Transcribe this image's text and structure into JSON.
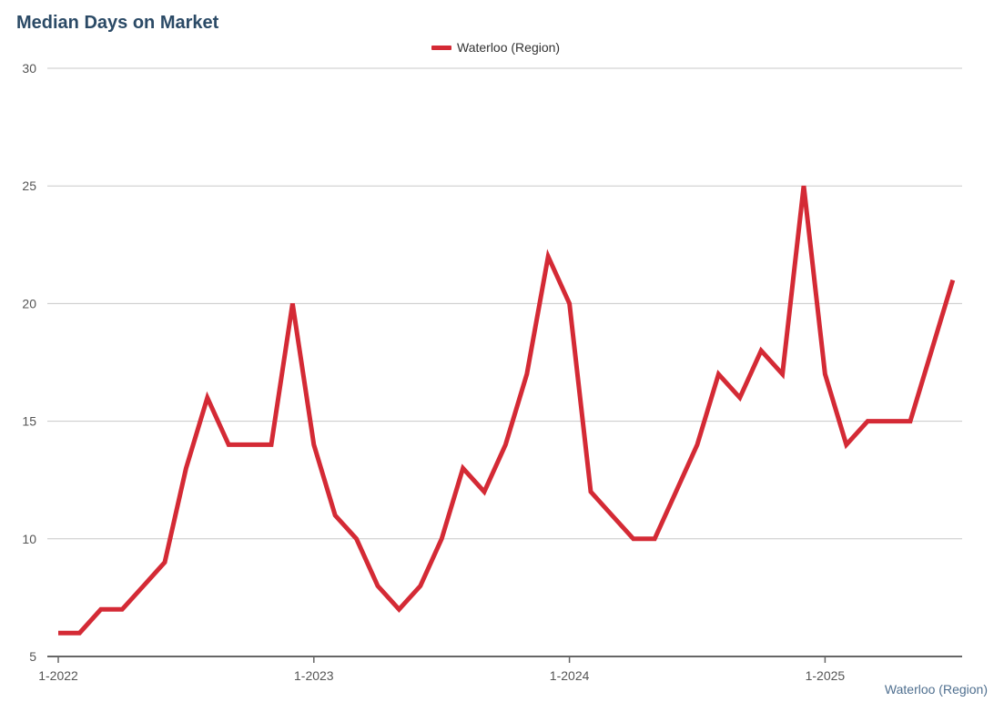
{
  "title": "Median Days on Market",
  "legend": {
    "label": "Waterloo (Region)"
  },
  "source_note": "Waterloo (Region)",
  "colors": {
    "series": "#d42a35",
    "grid": "#c8c8c8",
    "axis": "#666666",
    "title": "#2b4a66"
  },
  "chart_data": {
    "type": "line",
    "title": "Median Days on Market",
    "xlabel": "",
    "ylabel": "",
    "ylim": [
      5,
      30
    ],
    "yticks": [
      5,
      10,
      15,
      20,
      25,
      30
    ],
    "xticks": [
      "1-2022",
      "1-2023",
      "1-2024",
      "1-2025"
    ],
    "grid": true,
    "legend_position": "top-center",
    "x": [
      "1-2022",
      "2-2022",
      "3-2022",
      "4-2022",
      "5-2022",
      "6-2022",
      "7-2022",
      "8-2022",
      "9-2022",
      "10-2022",
      "11-2022",
      "12-2022",
      "1-2023",
      "2-2023",
      "3-2023",
      "4-2023",
      "5-2023",
      "6-2023",
      "7-2023",
      "8-2023",
      "9-2023",
      "10-2023",
      "11-2023",
      "12-2023",
      "1-2024",
      "2-2024",
      "3-2024",
      "4-2024",
      "5-2024",
      "6-2024",
      "7-2024",
      "8-2024",
      "9-2024",
      "10-2024",
      "11-2024",
      "12-2024",
      "1-2025",
      "2-2025",
      "3-2025",
      "4-2025",
      "5-2025",
      "6-2025",
      "7-2025"
    ],
    "series": [
      {
        "name": "Waterloo (Region)",
        "values": [
          6,
          6,
          7,
          7,
          8,
          9,
          13,
          16,
          14,
          14,
          14,
          20,
          14,
          11,
          10,
          8,
          7,
          8,
          10,
          13,
          12,
          14,
          17,
          22,
          20,
          12,
          11,
          10,
          10,
          12,
          14,
          17,
          16,
          18,
          17,
          25,
          17,
          14,
          15,
          15,
          15,
          18,
          21
        ]
      }
    ]
  }
}
